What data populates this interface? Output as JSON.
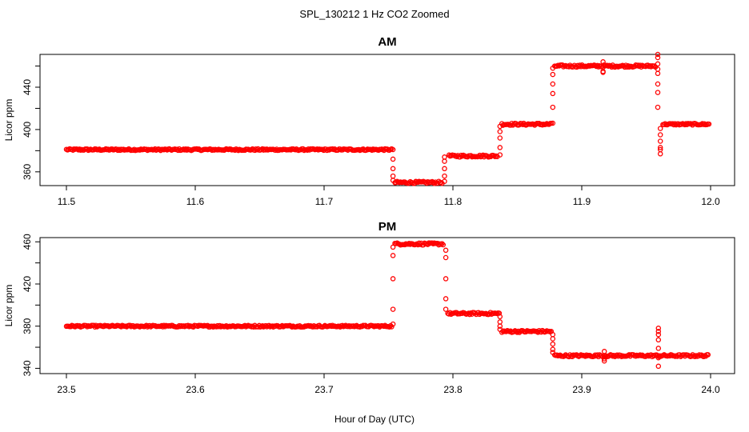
{
  "figure": {
    "title": "SPL_130212  1 Hz CO2 Zoomed",
    "xlabel": "Hour of Day (UTC)"
  },
  "colors": {
    "points": "#ff0000",
    "axes": "#000000",
    "background": "#ffffff"
  },
  "chart_data": [
    {
      "type": "scatter",
      "title": "AM",
      "xlabel": "Hour of Day (UTC)",
      "ylabel": "Licor ppm",
      "xlim": [
        11.5,
        12.0
      ],
      "ylim": [
        347,
        471
      ],
      "xticks": [
        "11.5",
        "11.6",
        "11.7",
        "11.8",
        "11.9",
        "12.0"
      ],
      "yticks": [
        "360",
        "400",
        "440"
      ],
      "marker": "open-circle",
      "grid": false,
      "segments": [
        {
          "x": [
            11.5,
            11.753
          ],
          "y": 381,
          "noise": 0.8
        },
        {
          "x": [
            11.755,
            11.792
          ],
          "y": 350,
          "noise": 1.0
        },
        {
          "x": [
            11.797,
            11.835
          ],
          "y": 375,
          "noise": 1.0
        },
        {
          "x": [
            11.838,
            11.877
          ],
          "y": 405,
          "noise": 1.0
        },
        {
          "x": [
            11.879,
            11.958
          ],
          "y": 460,
          "noise": 1.0
        },
        {
          "x": [
            11.963,
            11.999
          ],
          "y": 405,
          "noise": 0.8
        }
      ],
      "transitions": [
        {
          "x": 11.7535,
          "y": [
            381,
            372,
            363,
            356,
            352
          ]
        },
        {
          "x": 11.7935,
          "y": [
            351,
            356,
            363,
            370,
            374
          ]
        },
        {
          "x": 11.8365,
          "y": [
            376,
            383,
            392,
            398,
            403
          ]
        },
        {
          "x": 11.8775,
          "y": [
            406,
            421,
            434,
            443,
            452,
            458
          ]
        },
        {
          "x": 11.9165,
          "y": [
            455,
            459,
            464,
            454
          ]
        },
        {
          "x": 11.959,
          "y": [
            471,
            468,
            462,
            457,
            453,
            443,
            435,
            421
          ]
        },
        {
          "x": 11.961,
          "y": [
            383,
            377,
            381,
            389,
            395,
            401
          ]
        }
      ]
    },
    {
      "type": "scatter",
      "title": "PM",
      "xlabel": "Hour of Day (UTC)",
      "ylabel": "Licor ppm",
      "xlim": [
        23.5,
        24.0
      ],
      "ylim": [
        335,
        464
      ],
      "xticks": [
        "23.5",
        "23.6",
        "23.7",
        "23.8",
        "23.9",
        "24.0"
      ],
      "yticks": [
        "340",
        "380",
        "420",
        "460"
      ],
      "marker": "open-circle",
      "grid": false,
      "segments": [
        {
          "x": [
            23.5,
            23.753
          ],
          "y": 380,
          "noise": 0.8
        },
        {
          "x": [
            23.755,
            23.793
          ],
          "y": 458,
          "noise": 1.0
        },
        {
          "x": [
            23.796,
            23.836
          ],
          "y": 392,
          "noise": 1.0
        },
        {
          "x": [
            23.838,
            23.877
          ],
          "y": 375,
          "noise": 1.0
        },
        {
          "x": [
            23.879,
            23.998
          ],
          "y": 352,
          "noise": 1.0
        }
      ],
      "transitions": [
        {
          "x": 23.7535,
          "y": [
            382,
            396,
            425,
            447,
            455
          ]
        },
        {
          "x": 23.7945,
          "y": [
            452,
            445,
            425,
            406,
            396
          ]
        },
        {
          "x": 23.8365,
          "y": [
            389,
            384,
            380,
            377
          ]
        },
        {
          "x": 23.8775,
          "y": [
            372,
            368,
            363,
            358,
            355
          ]
        },
        {
          "x": 23.9175,
          "y": [
            356,
            349,
            347
          ]
        },
        {
          "x": 23.9595,
          "y": [
            378,
            375,
            372,
            367,
            359,
            350,
            342
          ]
        }
      ]
    }
  ]
}
